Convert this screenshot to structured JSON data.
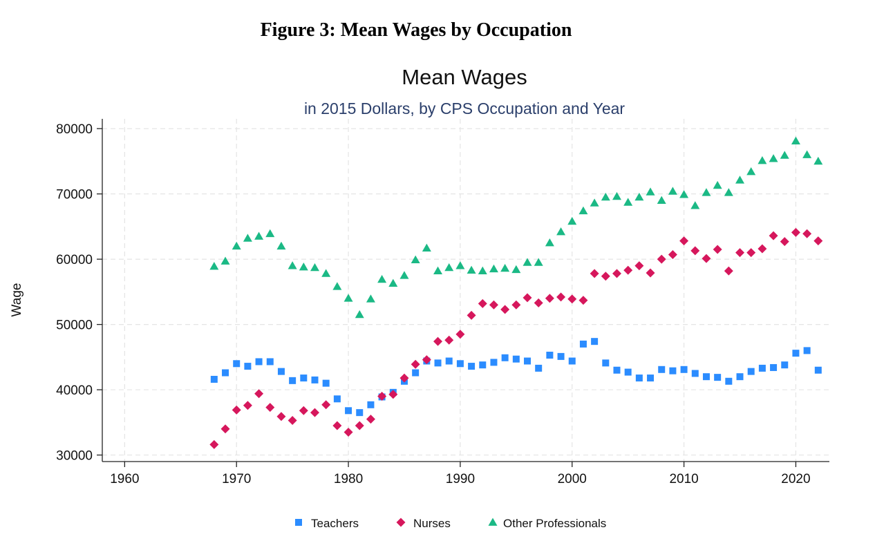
{
  "figure_caption": "Figure 3: Mean Wages by Occupation",
  "colors": {
    "teachers": "#2b8cff",
    "nurses": "#d6175c",
    "other_professionals": "#1bb985",
    "grid": "#e4e4e4"
  },
  "chart_data": {
    "type": "scatter",
    "title": "Mean Wages",
    "subtitle": "in 2015 Dollars, by CPS Occupation and Year",
    "xlabel": "",
    "ylabel": "Wage",
    "xlim": [
      1958,
      2023
    ],
    "ylim": [
      29000,
      81500
    ],
    "xticks": [
      1960,
      1970,
      1980,
      1990,
      2000,
      2010,
      2020
    ],
    "yticks": [
      30000,
      40000,
      50000,
      60000,
      70000,
      80000
    ],
    "grid": true,
    "legend_position": "bottom",
    "series": [
      {
        "name": "Teachers",
        "marker": "square",
        "x": [
          1968,
          1969,
          1970,
          1971,
          1972,
          1973,
          1974,
          1975,
          1976,
          1977,
          1978,
          1979,
          1980,
          1981,
          1982,
          1983,
          1984,
          1985,
          1986,
          1987,
          1988,
          1989,
          1990,
          1991,
          1992,
          1993,
          1994,
          1995,
          1996,
          1997,
          1998,
          1999,
          2000,
          2001,
          2002,
          2003,
          2004,
          2005,
          2006,
          2007,
          2008,
          2009,
          2010,
          2011,
          2012,
          2013,
          2014,
          2015,
          2016,
          2017,
          2018,
          2019,
          2020,
          2021,
          2022
        ],
        "y": [
          41600,
          42600,
          44000,
          43600,
          44300,
          44300,
          42800,
          41400,
          41800,
          41500,
          41000,
          38600,
          36800,
          36500,
          37700,
          38900,
          39600,
          41300,
          42600,
          44400,
          44100,
          44400,
          44000,
          43600,
          43800,
          44200,
          44900,
          44700,
          44400,
          43300,
          45300,
          45100,
          44400,
          47000,
          47400,
          44100,
          43000,
          42700,
          41800,
          41800,
          43100,
          42900,
          43100,
          42500,
          42000,
          41900,
          41300,
          42000,
          42800,
          43300,
          43400,
          43800,
          45600,
          46000,
          43000
        ]
      },
      {
        "name": "Nurses",
        "marker": "diamond",
        "x": [
          1968,
          1969,
          1970,
          1971,
          1972,
          1973,
          1974,
          1975,
          1976,
          1977,
          1978,
          1979,
          1980,
          1981,
          1982,
          1983,
          1984,
          1985,
          1986,
          1987,
          1988,
          1989,
          1990,
          1991,
          1992,
          1993,
          1994,
          1995,
          1996,
          1997,
          1998,
          1999,
          2000,
          2001,
          2002,
          2003,
          2004,
          2005,
          2006,
          2007,
          2008,
          2009,
          2010,
          2011,
          2012,
          2013,
          2014,
          2015,
          2016,
          2017,
          2018,
          2019,
          2020,
          2021,
          2022
        ],
        "y": [
          31600,
          34000,
          36900,
          37600,
          39400,
          37300,
          35900,
          35300,
          36800,
          36500,
          37700,
          34500,
          33500,
          34500,
          35500,
          39000,
          39300,
          41800,
          43900,
          44600,
          47400,
          47600,
          48500,
          51400,
          53200,
          53000,
          52300,
          53000,
          54100,
          53300,
          54000,
          54200,
          53900,
          53700,
          57800,
          57400,
          57800,
          58300,
          59000,
          57900,
          60000,
          60700,
          62800,
          61300,
          60100,
          61500,
          58200,
          61000,
          61000,
          61600,
          63600,
          62700,
          64100,
          63900,
          62800
        ]
      },
      {
        "name": "Other Professionals",
        "marker": "triangle",
        "x": [
          1968,
          1969,
          1970,
          1971,
          1972,
          1973,
          1974,
          1975,
          1976,
          1977,
          1978,
          1979,
          1980,
          1981,
          1982,
          1983,
          1984,
          1985,
          1986,
          1987,
          1988,
          1989,
          1990,
          1991,
          1992,
          1993,
          1994,
          1995,
          1996,
          1997,
          1998,
          1999,
          2000,
          2001,
          2002,
          2003,
          2004,
          2005,
          2006,
          2007,
          2008,
          2009,
          2010,
          2011,
          2012,
          2013,
          2014,
          2015,
          2016,
          2017,
          2018,
          2019,
          2020,
          2021,
          2022
        ],
        "y": [
          58900,
          59700,
          62000,
          63200,
          63500,
          63900,
          62000,
          59000,
          58800,
          58700,
          57800,
          55800,
          54000,
          51500,
          53900,
          56900,
          56300,
          57500,
          59900,
          61700,
          58200,
          58700,
          59000,
          58300,
          58200,
          58500,
          58600,
          58400,
          59500,
          59500,
          62500,
          64200,
          65800,
          67400,
          68600,
          69500,
          69600,
          68700,
          69500,
          70300,
          69000,
          70400,
          69900,
          68200,
          70200,
          71300,
          70200,
          72100,
          73400,
          75100,
          75400,
          75900,
          78100,
          76000,
          75000
        ]
      }
    ]
  }
}
